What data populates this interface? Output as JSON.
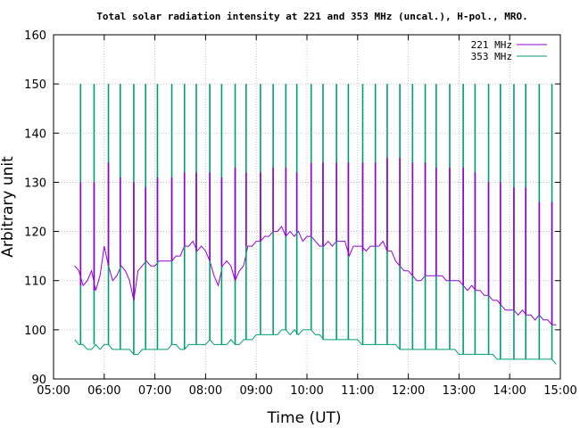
{
  "chart_data": {
    "type": "line",
    "title": "Total solar radiation intensity at 221 and 353 MHz (uncal.), H-pol., MRO.",
    "xlabel": "Time (UT)",
    "ylabel": "Arbitrary unit",
    "xlim": [
      "05:00",
      "15:00"
    ],
    "ylim": [
      90,
      160
    ],
    "x_ticks": [
      "05:00",
      "06:00",
      "07:00",
      "08:00",
      "09:00",
      "10:00",
      "11:00",
      "12:00",
      "13:00",
      "14:00",
      "15:00"
    ],
    "y_ticks": [
      90,
      100,
      110,
      120,
      130,
      140,
      150,
      160
    ],
    "grid": true,
    "legend": "top-right",
    "series": [
      {
        "name": "221 MHz",
        "color": "#9400d3",
        "x": [
          "05:25",
          "05:30",
          "05:35",
          "05:40",
          "05:45",
          "05:50",
          "05:55",
          "06:00",
          "06:05",
          "06:10",
          "06:15",
          "06:20",
          "06:25",
          "06:30",
          "06:35",
          "06:40",
          "06:45",
          "06:50",
          "06:55",
          "07:00",
          "07:05",
          "07:10",
          "07:15",
          "07:20",
          "07:25",
          "07:30",
          "07:35",
          "07:40",
          "07:45",
          "07:50",
          "07:55",
          "08:00",
          "08:05",
          "08:10",
          "08:15",
          "08:20",
          "08:25",
          "08:30",
          "08:35",
          "08:40",
          "08:45",
          "08:50",
          "08:55",
          "09:00",
          "09:05",
          "09:10",
          "09:15",
          "09:20",
          "09:25",
          "09:30",
          "09:35",
          "09:40",
          "09:45",
          "09:50",
          "09:55",
          "10:00",
          "10:05",
          "10:10",
          "10:15",
          "10:20",
          "10:25",
          "10:30",
          "10:35",
          "10:40",
          "10:45",
          "10:50",
          "10:55",
          "11:00",
          "11:05",
          "11:10",
          "11:15",
          "11:20",
          "11:25",
          "11:30",
          "11:35",
          "11:40",
          "11:45",
          "11:50",
          "11:55",
          "12:00",
          "12:05",
          "12:10",
          "12:15",
          "12:20",
          "12:25",
          "12:30",
          "12:35",
          "12:40",
          "12:45",
          "12:50",
          "12:55",
          "13:00",
          "13:05",
          "13:10",
          "13:15",
          "13:20",
          "13:25",
          "13:30",
          "13:35",
          "13:40",
          "13:45",
          "13:50",
          "13:55",
          "14:00",
          "14:05",
          "14:10",
          "14:15",
          "14:20",
          "14:25",
          "14:30",
          "14:35",
          "14:40",
          "14:45",
          "14:50",
          "14:55"
        ],
        "values": [
          113,
          112,
          109,
          110,
          112,
          108,
          111,
          117,
          113,
          110,
          111,
          113,
          112,
          110,
          106,
          112,
          113,
          114,
          113,
          113,
          114,
          114,
          114,
          114,
          115,
          115,
          117,
          117,
          118,
          116,
          117,
          116,
          114,
          111,
          109,
          113,
          114,
          113,
          110,
          112,
          113,
          117,
          117,
          118,
          118,
          119,
          119,
          120,
          120,
          121,
          119,
          120,
          119,
          120,
          118,
          119,
          119,
          118,
          117,
          117,
          118,
          117,
          118,
          118,
          118,
          115,
          117,
          117,
          117,
          116,
          117,
          117,
          117,
          118,
          116,
          116,
          114,
          113,
          112,
          112,
          111,
          110,
          110,
          111,
          111,
          111,
          111,
          111,
          110,
          110,
          110,
          110,
          109,
          108,
          109,
          108,
          108,
          107,
          107,
          106,
          106,
          105,
          104,
          104,
          104,
          103,
          104,
          103,
          103,
          102,
          103,
          102,
          102,
          101,
          101
        ]
      },
      {
        "name": "353 MHz",
        "color": "#009e73",
        "x": [
          "05:25",
          "05:30",
          "05:35",
          "05:40",
          "05:45",
          "05:50",
          "05:55",
          "06:00",
          "06:05",
          "06:10",
          "06:15",
          "06:20",
          "06:25",
          "06:30",
          "06:35",
          "06:40",
          "06:45",
          "06:50",
          "06:55",
          "07:00",
          "07:05",
          "07:10",
          "07:15",
          "07:20",
          "07:25",
          "07:30",
          "07:35",
          "07:40",
          "07:45",
          "07:50",
          "07:55",
          "08:00",
          "08:05",
          "08:10",
          "08:15",
          "08:20",
          "08:25",
          "08:30",
          "08:35",
          "08:40",
          "08:45",
          "08:50",
          "08:55",
          "09:00",
          "09:05",
          "09:10",
          "09:15",
          "09:20",
          "09:25",
          "09:30",
          "09:35",
          "09:40",
          "09:45",
          "09:50",
          "09:55",
          "10:00",
          "10:05",
          "10:10",
          "10:15",
          "10:20",
          "10:25",
          "10:30",
          "10:35",
          "10:40",
          "10:45",
          "10:50",
          "10:55",
          "11:00",
          "11:05",
          "11:10",
          "11:15",
          "11:20",
          "11:25",
          "11:30",
          "11:35",
          "11:40",
          "11:45",
          "11:50",
          "11:55",
          "12:00",
          "12:05",
          "12:10",
          "12:15",
          "12:20",
          "12:25",
          "12:30",
          "12:35",
          "12:40",
          "12:45",
          "12:50",
          "12:55",
          "13:00",
          "13:05",
          "13:10",
          "13:15",
          "13:20",
          "13:25",
          "13:30",
          "13:35",
          "13:40",
          "13:45",
          "13:50",
          "13:55",
          "14:00",
          "14:05",
          "14:10",
          "14:15",
          "14:20",
          "14:25",
          "14:30",
          "14:35",
          "14:40",
          "14:45",
          "14:50",
          "14:55"
        ],
        "values": [
          98,
          97,
          97,
          96,
          96,
          97,
          96,
          97,
          97,
          96,
          96,
          96,
          96,
          96,
          95,
          95,
          96,
          96,
          96,
          96,
          96,
          96,
          96,
          97,
          97,
          96,
          96,
          97,
          97,
          97,
          97,
          97,
          98,
          97,
          97,
          97,
          97,
          98,
          97,
          97,
          98,
          98,
          98,
          99,
          99,
          99,
          99,
          99,
          99,
          100,
          100,
          99,
          100,
          99,
          100,
          100,
          100,
          99,
          99,
          98,
          98,
          98,
          98,
          98,
          98,
          98,
          98,
          98,
          97,
          97,
          97,
          97,
          97,
          97,
          97,
          97,
          97,
          96,
          96,
          96,
          96,
          96,
          96,
          96,
          96,
          96,
          96,
          96,
          96,
          96,
          96,
          95,
          95,
          95,
          95,
          95,
          95,
          95,
          95,
          95,
          94,
          94,
          94,
          94,
          94,
          94,
          94,
          94,
          94,
          94,
          94,
          94,
          94,
          94,
          93
        ]
      }
    ],
    "spikes_221MHz": {
      "x": [
        "05:32",
        "05:48",
        "06:05",
        "06:19",
        "06:35",
        "06:49",
        "07:03",
        "07:20",
        "07:35",
        "07:49",
        "08:05",
        "08:19",
        "08:35",
        "08:48",
        "09:05",
        "09:20",
        "09:35",
        "09:48",
        "10:05",
        "10:19",
        "10:35",
        "10:49",
        "11:06",
        "11:21",
        "11:35",
        "11:50",
        "12:05",
        "12:20",
        "12:33",
        "12:49",
        "13:05",
        "13:19",
        "13:35",
        "13:49",
        "14:05",
        "14:19",
        "14:35",
        "14:50"
      ],
      "values": [
        130,
        130,
        134,
        131,
        130,
        129,
        131,
        131,
        132,
        132,
        132,
        131,
        133,
        132,
        132,
        133,
        133,
        132,
        134,
        134,
        134,
        134,
        134,
        134,
        135,
        135,
        134,
        134,
        133,
        133,
        133,
        132,
        130,
        130,
        129,
        129,
        126,
        126
      ]
    },
    "spikes_353MHz": {
      "x": [
        "05:32",
        "05:48",
        "06:05",
        "06:19",
        "06:35",
        "06:49",
        "07:03",
        "07:20",
        "07:35",
        "07:49",
        "08:05",
        "08:19",
        "08:35",
        "08:48",
        "09:05",
        "09:20",
        "09:35",
        "09:48",
        "10:05",
        "10:19",
        "10:35",
        "10:49",
        "11:06",
        "11:21",
        "11:35",
        "11:50",
        "12:05",
        "12:20",
        "12:33",
        "12:49",
        "13:05",
        "13:19",
        "13:35",
        "13:49",
        "14:05",
        "14:19",
        "14:35",
        "14:50"
      ],
      "values": [
        150,
        150,
        150,
        150,
        150,
        150,
        150,
        150,
        150,
        150,
        150,
        150,
        150,
        150,
        150,
        150,
        150,
        150,
        150,
        150,
        150,
        150,
        150,
        150,
        150,
        150,
        150,
        150,
        150,
        150,
        150,
        150,
        150,
        150,
        150,
        150,
        150,
        150
      ]
    }
  }
}
